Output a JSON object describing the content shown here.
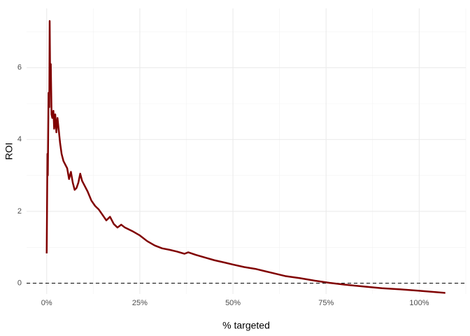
{
  "chart_data": {
    "type": "line",
    "x_label": "% targeted",
    "y_label": "ROI",
    "color": "#800000",
    "x": [
      0,
      0.2,
      0.3,
      0.5,
      0.7,
      0.8,
      0.9,
      1.1,
      1.3,
      1.5,
      1.8,
      2.0,
      2.3,
      2.6,
      2.9,
      3.2,
      3.6,
      4.0,
      4.5,
      5,
      5.5,
      6,
      6.5,
      7,
      7.5,
      8,
      8.5,
      9,
      9.5,
      10,
      11,
      12,
      13,
      14,
      15,
      16,
      17,
      18,
      19,
      20,
      21,
      22,
      23,
      25,
      27,
      29,
      31,
      33,
      35,
      37,
      38,
      40,
      43,
      45,
      48,
      50,
      53,
      56,
      60,
      64,
      68,
      72,
      76,
      80,
      85,
      90,
      95,
      100,
      107
    ],
    "values": [
      0.83,
      3.6,
      3.0,
      5.3,
      4.9,
      7.3,
      6.0,
      6.1,
      4.7,
      4.6,
      4.8,
      4.3,
      4.7,
      4.2,
      4.6,
      4.3,
      3.9,
      3.6,
      3.4,
      3.3,
      3.2,
      2.9,
      3.1,
      2.8,
      2.6,
      2.65,
      2.8,
      3.05,
      2.85,
      2.75,
      2.55,
      2.3,
      2.15,
      2.05,
      1.9,
      1.75,
      1.85,
      1.65,
      1.55,
      1.63,
      1.55,
      1.5,
      1.45,
      1.33,
      1.17,
      1.05,
      0.97,
      0.93,
      0.88,
      0.82,
      0.86,
      0.79,
      0.7,
      0.64,
      0.57,
      0.52,
      0.45,
      0.4,
      0.3,
      0.2,
      0.14,
      0.07,
      0.01,
      -0.04,
      -0.09,
      -0.14,
      -0.17,
      -0.21,
      -0.27
    ],
    "xlim": [
      -5.4,
      112.5
    ],
    "ylim": [
      -0.3,
      7.65
    ],
    "xticks": [
      {
        "value": 0,
        "label": "0%"
      },
      {
        "value": 25,
        "label": "25%"
      },
      {
        "value": 50,
        "label": "50%"
      },
      {
        "value": 75,
        "label": "75%"
      },
      {
        "value": 100,
        "label": "100%"
      }
    ],
    "yticks": [
      0,
      2,
      4,
      6
    ],
    "x_minor_ticks": [
      12.5,
      37.5,
      62.5,
      87.5,
      112.5
    ],
    "y_minor_ticks": [
      1,
      3,
      5,
      7
    ],
    "hline": 0,
    "grid": true
  }
}
